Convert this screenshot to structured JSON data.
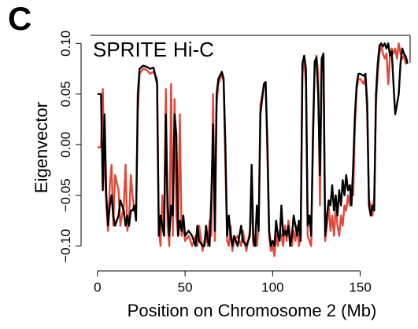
{
  "chart_data": {
    "type": "line",
    "panel_label": "C",
    "xlabel": "Position on Chromosome 2 (Mb)",
    "ylabel": "Eigenvector",
    "xlim": [
      -4,
      178.5
    ],
    "ylim": [
      -0.113,
      0.108
    ],
    "xticks": [
      0,
      50,
      100,
      150
    ],
    "yticks": [
      {
        "value": -0.1,
        "label": "−0.10"
      },
      {
        "value": -0.05,
        "label": "−0.05"
      },
      {
        "value": 0,
        "label": "0.00"
      },
      0.05,
      {
        "value": 0.1,
        "label": "0.10"
      }
    ],
    "x": [
      0,
      1,
      2,
      3,
      4,
      5,
      6,
      7,
      8,
      9,
      10,
      12,
      13,
      15,
      16,
      17,
      18,
      19,
      20,
      21,
      22,
      23,
      24,
      26,
      28,
      30,
      32,
      34,
      35,
      36,
      37,
      38,
      39,
      40,
      41,
      42,
      43,
      44,
      45,
      46,
      47,
      48,
      49,
      50,
      52,
      54,
      56,
      57,
      58,
      60,
      61,
      62,
      63,
      64,
      65,
      66,
      67,
      68,
      69,
      71,
      72,
      73,
      74,
      75,
      76,
      77,
      78,
      80,
      82,
      83,
      85,
      87,
      88,
      89,
      90,
      91,
      92,
      93,
      95,
      96,
      97,
      98,
      99,
      100,
      101,
      102,
      103,
      104,
      105,
      106,
      107,
      108,
      109,
      110,
      111,
      112,
      113,
      114,
      115,
      116,
      117,
      118,
      119,
      120,
      121,
      122,
      123,
      124,
      125,
      126,
      127,
      128,
      129,
      130,
      131,
      132,
      133,
      134,
      135,
      136,
      137,
      138,
      139,
      140,
      141,
      142,
      143,
      144,
      145,
      146,
      147,
      148,
      149,
      150,
      152,
      153,
      154,
      155,
      156,
      157,
      158,
      159,
      160,
      161,
      162,
      163,
      164,
      165,
      166,
      167,
      168,
      169,
      170,
      171,
      172,
      173,
      174,
      175,
      176,
      177
    ],
    "series": [
      {
        "name": "Hi-C",
        "color": "#e0483a",
        "values": [
          -0.002,
          -0.003,
          -0.002,
          0.055,
          -0.02,
          -0.06,
          -0.085,
          -0.04,
          -0.02,
          -0.08,
          -0.03,
          -0.045,
          -0.08,
          -0.06,
          -0.02,
          -0.085,
          -0.075,
          -0.03,
          -0.05,
          -0.065,
          -0.07,
          0.03,
          0.07,
          0.075,
          0.074,
          0.07,
          0.072,
          0.065,
          -0.085,
          -0.1,
          -0.05,
          -0.09,
          0.055,
          -0.08,
          -0.1,
          0.06,
          -0.09,
          0.045,
          -0.07,
          -0.09,
          0.03,
          -0.09,
          -0.08,
          -0.095,
          -0.09,
          -0.1,
          -0.09,
          -0.1,
          -0.08,
          -0.105,
          -0.095,
          -0.09,
          -0.1,
          -0.075,
          -0.09,
          0.05,
          -0.095,
          0.04,
          0.06,
          0.07,
          0.062,
          -0.02,
          -0.095,
          -0.1,
          -0.08,
          -0.105,
          -0.095,
          -0.09,
          -0.1,
          -0.085,
          -0.105,
          -0.085,
          -0.06,
          -0.1,
          -0.09,
          -0.1,
          -0.08,
          0.04,
          0.058,
          0.06,
          -0.01,
          -0.09,
          -0.105,
          -0.1,
          -0.11,
          -0.09,
          -0.1,
          -0.085,
          -0.09,
          -0.1,
          -0.08,
          -0.095,
          -0.075,
          -0.09,
          -0.1,
          -0.085,
          -0.095,
          -0.08,
          -0.1,
          -0.09,
          0.07,
          0.085,
          0.06,
          -0.09,
          -0.095,
          -0.1,
          0.02,
          0.075,
          0.088,
          0.07,
          -0.06,
          0.08,
          0.088,
          -0.095,
          -0.08,
          -0.06,
          -0.085,
          -0.07,
          -0.09,
          -0.06,
          -0.08,
          -0.09,
          -0.07,
          -0.08,
          -0.06,
          -0.065,
          -0.05,
          -0.06,
          -0.04,
          -0.05,
          0.02,
          0.055,
          0.065,
          0.065,
          0.06,
          0.068,
          0.03,
          -0.055,
          -0.06,
          -0.07,
          -0.05,
          0.04,
          0.07,
          0.09,
          0.098,
          0.09,
          0.085,
          0.09,
          0.06,
          0.088,
          0.095,
          0.09,
          0.095,
          0.085,
          0.1,
          0.09,
          0.085,
          0.088,
          0.08,
          0.085
        ]
      },
      {
        "name": "SPRITE",
        "color": "#000000",
        "values": [
          0.05,
          0.05,
          0.05,
          -0.045,
          0.03,
          -0.05,
          -0.08,
          -0.06,
          -0.05,
          -0.07,
          -0.08,
          -0.07,
          -0.055,
          -0.065,
          -0.08,
          -0.07,
          -0.08,
          -0.065,
          -0.065,
          -0.06,
          -0.075,
          0.05,
          0.075,
          0.078,
          0.077,
          0.075,
          0.076,
          0.06,
          -0.09,
          -0.07,
          -0.08,
          -0.09,
          0.03,
          -0.06,
          -0.09,
          -0.06,
          -0.07,
          0.03,
          0.01,
          -0.09,
          -0.075,
          -0.085,
          -0.07,
          -0.09,
          -0.085,
          -0.09,
          -0.1,
          -0.08,
          -0.095,
          -0.1,
          -0.1,
          -0.08,
          -0.095,
          -0.1,
          -0.05,
          0.02,
          -0.085,
          0.05,
          0.065,
          0.072,
          0.065,
          0.0,
          -0.09,
          -0.07,
          -0.09,
          -0.1,
          -0.09,
          -0.1,
          -0.08,
          -0.095,
          -0.1,
          -0.09,
          -0.02,
          -0.095,
          -0.1,
          -0.06,
          -0.085,
          0.03,
          0.06,
          0.062,
          0.0,
          -0.085,
          -0.1,
          -0.095,
          -0.1,
          -0.075,
          -0.09,
          -0.095,
          -0.06,
          -0.09,
          -0.085,
          -0.09,
          -0.08,
          -0.1,
          -0.09,
          -0.07,
          -0.08,
          -0.09,
          -0.075,
          -0.095,
          0.08,
          0.088,
          0.075,
          -0.08,
          -0.07,
          -0.09,
          0.0,
          0.082,
          0.086,
          0.05,
          -0.03,
          0.085,
          0.09,
          -0.09,
          -0.07,
          -0.055,
          -0.06,
          -0.04,
          -0.065,
          -0.05,
          -0.07,
          -0.045,
          -0.06,
          -0.035,
          -0.05,
          -0.03,
          -0.045,
          -0.04,
          -0.06,
          -0.02,
          0.03,
          0.06,
          0.07,
          0.07,
          0.068,
          0.07,
          0.04,
          -0.06,
          -0.07,
          -0.06,
          -0.065,
          0.05,
          0.08,
          0.098,
          0.1,
          0.097,
          0.1,
          0.095,
          0.1,
          0.088,
          0.092,
          0.06,
          0.03,
          0.04,
          0.05,
          0.08,
          0.095,
          0.09,
          0.087,
          0.08
        ]
      }
    ],
    "legend": "top-left"
  }
}
